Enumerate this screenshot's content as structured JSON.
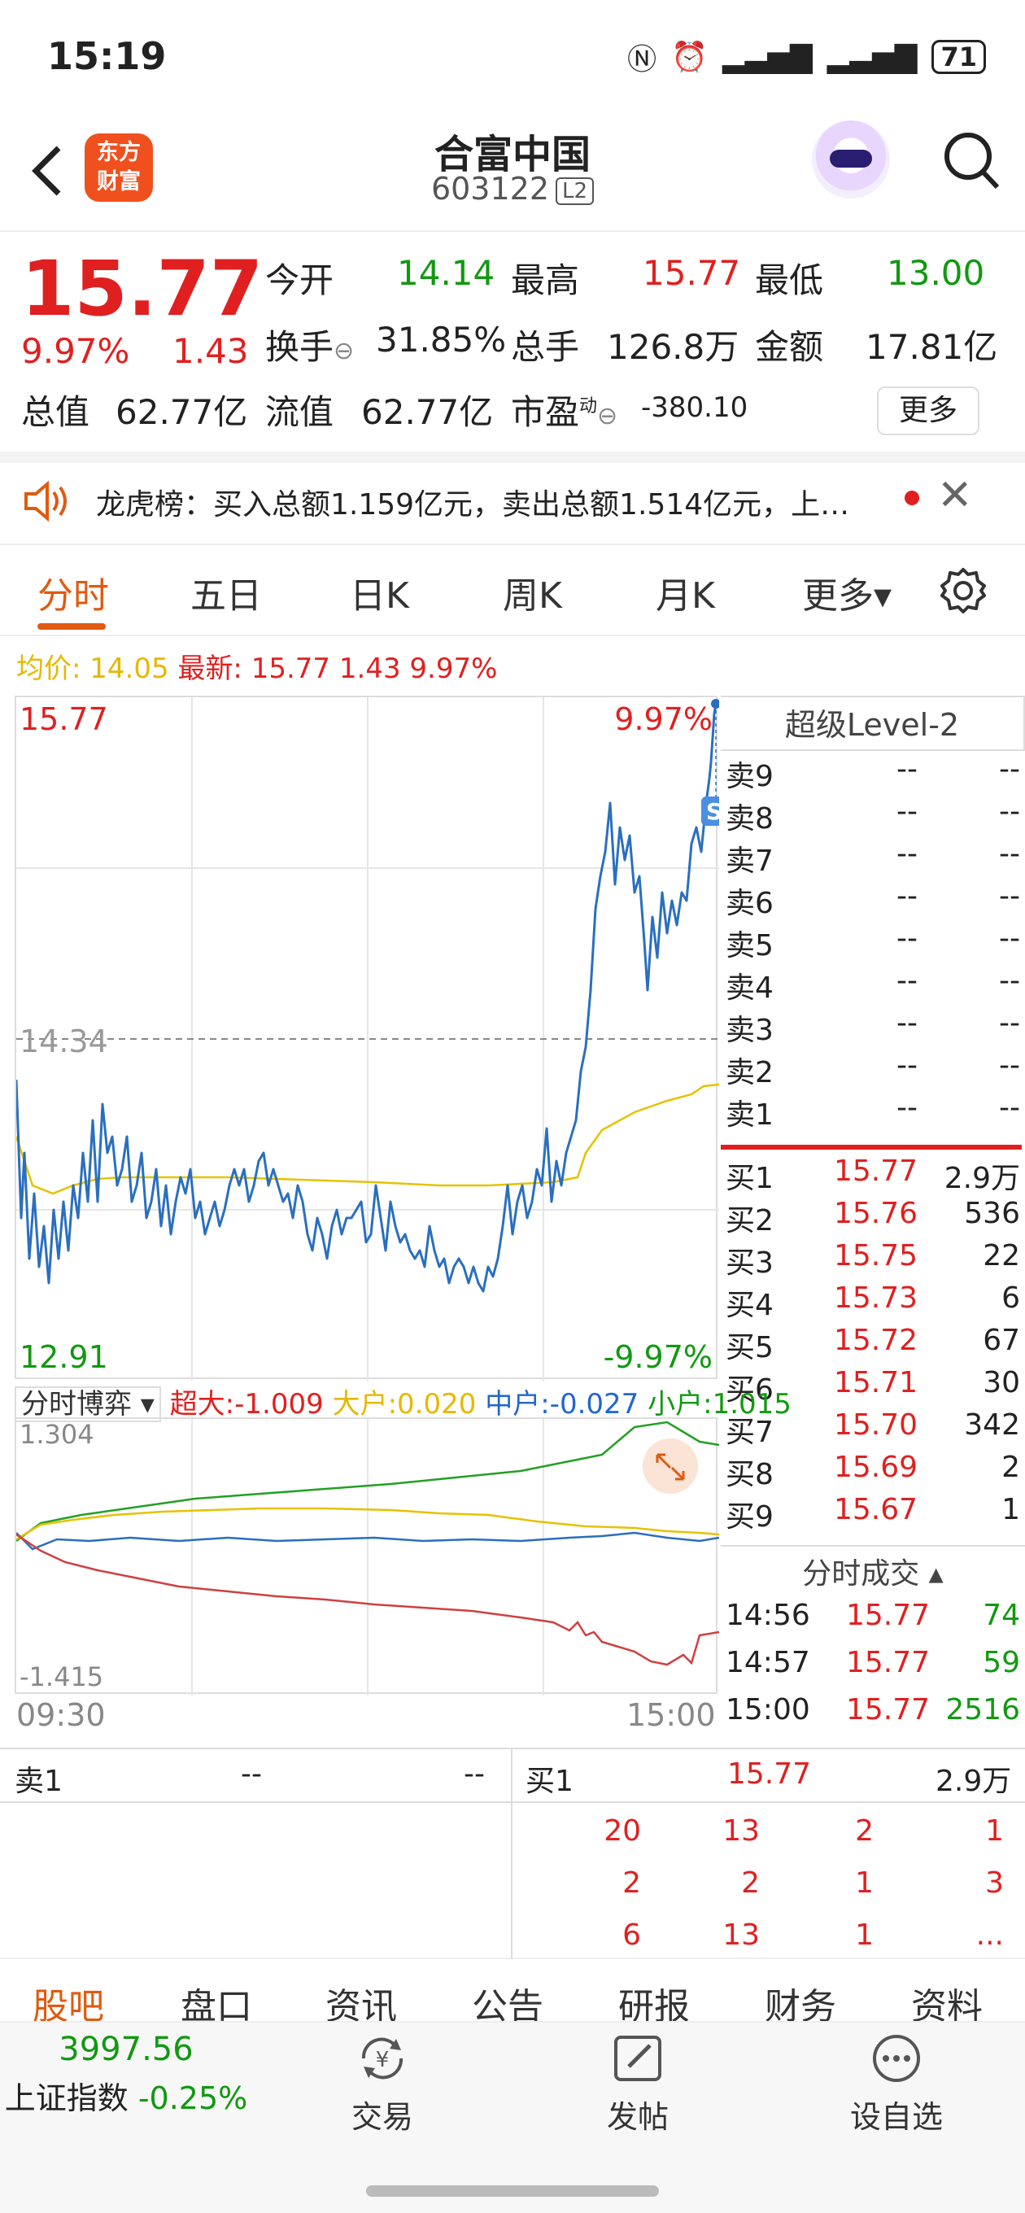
{
  "status_bar": {
    "time": "15:19",
    "battery": "71"
  },
  "header": {
    "logo_line1": "东方",
    "logo_line2": "财富",
    "title": "合富中国",
    "code": "603122",
    "level": "L2"
  },
  "quote": {
    "price": "15.77",
    "change_pct": "9.97%",
    "change": "1.43",
    "open_label": "今开",
    "open": "14.14",
    "high_label": "最高",
    "high": "15.77",
    "low_label": "最低",
    "low": "13.00",
    "turnover_label": "换手",
    "turnover": "31.85%",
    "volume_label": "总手",
    "volume": "126.8万",
    "amount_label": "金额",
    "amount": "17.81亿",
    "mcap_label": "总值",
    "mcap": "62.77亿",
    "float_label": "流值",
    "float": "62.77亿",
    "pe_label": "市盈",
    "pe_sup": "动",
    "pe": "-380.10",
    "more": "更多"
  },
  "notice": {
    "text": "龙虎榜：买入总额1.159亿元，卖出总额1.514亿元，上…"
  },
  "tabs": [
    "分时",
    "五日",
    "日K",
    "周K",
    "月K",
    "更多▾"
  ],
  "intraday": {
    "avg_label": "均价:",
    "avg": "14.05",
    "latest_label": "最新:",
    "latest": "15.77",
    "latest_change": "1.43",
    "latest_pct": "9.97%",
    "top_price": "15.77",
    "top_pct": "9.97%",
    "mid_price": "14.34",
    "bottom_price": "12.91",
    "bottom_pct": "-9.97%",
    "badge": "S"
  },
  "orderbook": {
    "title": "超级Level-2",
    "asks": [
      {
        "label": "卖9",
        "price": "--",
        "vol": "--"
      },
      {
        "label": "卖8",
        "price": "--",
        "vol": "--"
      },
      {
        "label": "卖7",
        "price": "--",
        "vol": "--"
      },
      {
        "label": "卖6",
        "price": "--",
        "vol": "--"
      },
      {
        "label": "卖5",
        "price": "--",
        "vol": "--"
      },
      {
        "label": "卖4",
        "price": "--",
        "vol": "--"
      },
      {
        "label": "卖3",
        "price": "--",
        "vol": "--"
      },
      {
        "label": "卖2",
        "price": "--",
        "vol": "--"
      },
      {
        "label": "卖1",
        "price": "--",
        "vol": "--"
      }
    ],
    "bids": [
      {
        "label": "买1",
        "price": "15.77",
        "vol": "2.9万"
      },
      {
        "label": "买2",
        "price": "15.76",
        "vol": "536"
      },
      {
        "label": "买3",
        "price": "15.75",
        "vol": "22"
      },
      {
        "label": "买4",
        "price": "15.73",
        "vol": "6"
      },
      {
        "label": "买5",
        "price": "15.72",
        "vol": "67"
      },
      {
        "label": "买6",
        "price": "15.71",
        "vol": "30"
      },
      {
        "label": "买7",
        "price": "15.70",
        "vol": "342"
      },
      {
        "label": "买8",
        "price": "15.69",
        "vol": "2"
      },
      {
        "label": "买9",
        "price": "15.67",
        "vol": "1"
      }
    ],
    "trades_title": "分时成交 ▴",
    "trades": [
      {
        "time": "14:56",
        "price": "15.77",
        "vol": "74"
      },
      {
        "time": "14:57",
        "price": "15.77",
        "vol": "59"
      },
      {
        "time": "15:00",
        "price": "15.77",
        "vol": "2516"
      }
    ]
  },
  "battle": {
    "selector": "分时博弈 ▾",
    "super_label": "超大:",
    "super": "-1.009",
    "large_label": "大户:",
    "large": "0.020",
    "mid_label": "中户:",
    "mid": "-0.027",
    "small_label": "小户:",
    "small": "1.015",
    "ymax": "1.304",
    "ymin": "-1.415",
    "t_start": "09:30",
    "t_end": "15:00"
  },
  "level2_summary": {
    "ask_label": "卖1",
    "ask_price": "--",
    "ask_vol": "--",
    "bid_label": "买1",
    "bid_price": "15.77",
    "bid_vol": "2.9万",
    "queue": [
      [
        "20",
        "13",
        "2",
        "1"
      ],
      [
        "2",
        "2",
        "1",
        "3"
      ],
      [
        "6",
        "13",
        "1",
        "..."
      ]
    ]
  },
  "bottom_tabs": [
    "股吧",
    "盘口",
    "资讯",
    "公告",
    "研报",
    "财务",
    "资料"
  ],
  "footer": {
    "index_value": "3997.56",
    "index_name": "上证指数",
    "index_change": "-0.25%",
    "trade": "交易",
    "post": "发帖",
    "watch": "设自选"
  }
}
